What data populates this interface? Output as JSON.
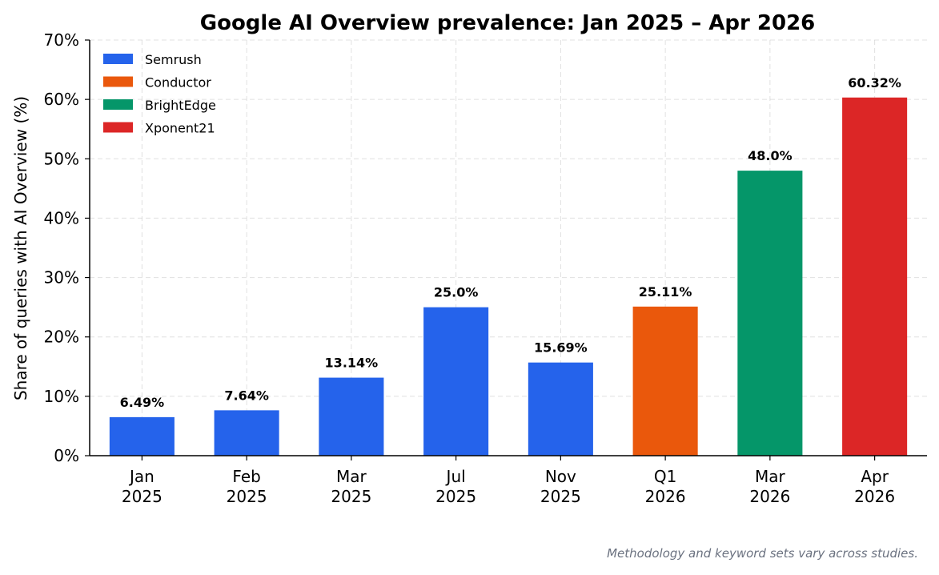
{
  "chart_data": {
    "type": "bar",
    "title": "Google AI Overview prevalence: Jan 2025 – Apr 2026",
    "ylabel": "Share of queries with AI Overview (%)",
    "xlabel": "",
    "ylim": [
      0,
      70
    ],
    "yticks": [
      "0%",
      "10%",
      "20%",
      "30%",
      "40%",
      "50%",
      "60%",
      "70%"
    ],
    "grid": true,
    "legend_position": "top-left",
    "categories": [
      [
        "Jan",
        "2025"
      ],
      [
        "Feb",
        "2025"
      ],
      [
        "Mar",
        "2025"
      ],
      [
        "Jul",
        "2025"
      ],
      [
        "Nov",
        "2025"
      ],
      [
        "Q1",
        "2026"
      ],
      [
        "Mar",
        "2026"
      ],
      [
        "Apr",
        "2026"
      ]
    ],
    "values": [
      6.49,
      7.64,
      13.14,
      25.0,
      15.69,
      25.11,
      48.0,
      60.32
    ],
    "data_labels": [
      "6.49%",
      "7.64%",
      "13.14%",
      "25.0%",
      "15.69%",
      "25.11%",
      "48.0%",
      "60.32%"
    ],
    "bar_series": [
      0,
      0,
      0,
      0,
      0,
      1,
      2,
      3
    ],
    "series": [
      {
        "name": "Semrush",
        "color": "#2563eb"
      },
      {
        "name": "Conductor",
        "color": "#ea580c"
      },
      {
        "name": "BrightEdge",
        "color": "#059669"
      },
      {
        "name": "Xponent21",
        "color": "#dc2626"
      }
    ]
  },
  "footnote": "Methodology and keyword sets vary across studies."
}
